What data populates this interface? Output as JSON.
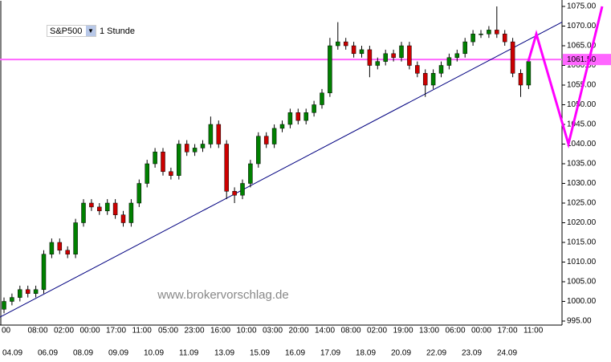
{
  "chart_data": {
    "type": "candlestick",
    "toolbar": {
      "symbol": "S&P500",
      "interval": "1 Stunde"
    },
    "watermark": "www.brokervorschlag.de",
    "ylim": [
      995,
      1075
    ],
    "yticks": [
      {
        "value": 995,
        "label": "995.00"
      },
      {
        "value": 1000,
        "label": "1000.00"
      },
      {
        "value": 1005,
        "label": "1005.00"
      },
      {
        "value": 1010,
        "label": "1010.00"
      },
      {
        "value": 1015,
        "label": "1015.00"
      },
      {
        "value": 1020,
        "label": "1020.00"
      },
      {
        "value": 1025,
        "label": "1025.00"
      },
      {
        "value": 1030,
        "label": "1030.00"
      },
      {
        "value": 1035,
        "label": "1035.00"
      },
      {
        "value": 1040,
        "label": "1040.00"
      },
      {
        "value": 1045,
        "label": "1045.00"
      },
      {
        "value": 1050,
        "label": "1050.00"
      },
      {
        "value": 1055,
        "label": "1055.00"
      },
      {
        "value": 1060,
        "label": "1060.00"
      },
      {
        "value": 1065,
        "label": "1065.00"
      },
      {
        "value": 1070,
        "label": "1070.00"
      },
      {
        "value": 1075,
        "label": "1075.00"
      }
    ],
    "time_labels": [
      "00",
      "08:00",
      "02:00",
      "00:00",
      "17:00",
      "11:00",
      "05:00",
      "23:00",
      "16:00",
      "10:00",
      "03:00",
      "20:00",
      "14:00",
      "08:00",
      "02:00",
      "19:00",
      "13:00",
      "06:00",
      "00:00",
      "17:00",
      "11:00"
    ],
    "date_labels": [
      "04.09",
      "06.09",
      "08.09",
      "09.09",
      "10.09",
      "11.09",
      "13.09",
      "15.09",
      "16.09",
      "17.09",
      "18.09",
      "20.09",
      "22.09",
      "23.09",
      "24.09"
    ],
    "current_price": {
      "value": 1061.5,
      "label": "1061.50",
      "color": "#ff66ff"
    },
    "trendline": {
      "values": [
        996,
        1071
      ],
      "color": "#000080"
    },
    "forecast": {
      "values": [
        1061,
        1068,
        1040,
        1075
      ],
      "color": "#ff00ff"
    },
    "up_color": "#008000",
    "down_color": "#cc0000",
    "open": [
      998,
      1000,
      1001,
      1003,
      1002,
      1003,
      1012,
      1015,
      1013,
      1012,
      1020,
      1025,
      1024,
      1023,
      1025,
      1022,
      1020,
      1025,
      1030,
      1035,
      1038,
      1033,
      1032,
      1040,
      1038,
      1039,
      1040,
      1045,
      1040,
      1028,
      1027,
      1030,
      1035,
      1042,
      1040,
      1044,
      1045,
      1048,
      1046,
      1048,
      1050,
      1053,
      1065,
      1066,
      1065,
      1063,
      1064,
      1060,
      1061,
      1063,
      1062,
      1065,
      1060,
      1058,
      1055,
      1058,
      1060,
      1062,
      1063,
      1066,
      1068,
      1068,
      1069,
      1068,
      1066,
      1058,
      1055
    ],
    "high": [
      1001,
      1002,
      1004,
      1004,
      1004,
      1013,
      1016,
      1016,
      1014,
      1021,
      1026,
      1026,
      1025,
      1026,
      1026,
      1023,
      1026,
      1031,
      1036,
      1039,
      1039,
      1034,
      1041,
      1041,
      1040,
      1041,
      1047,
      1046,
      1041,
      1029,
      1031,
      1036,
      1043,
      1043,
      1045,
      1046,
      1049,
      1049,
      1049,
      1051,
      1054,
      1067,
      1071,
      1067,
      1066,
      1065,
      1065,
      1062,
      1064,
      1064,
      1066,
      1066,
      1061,
      1059,
      1059,
      1061,
      1063,
      1064,
      1067,
      1069,
      1069,
      1070,
      1075,
      1069,
      1067,
      1059,
      1062
    ],
    "low": [
      997,
      999,
      1000,
      1001,
      1001,
      1002,
      1011,
      1012,
      1011,
      1011,
      1019,
      1023,
      1022,
      1022,
      1021,
      1019,
      1019,
      1024,
      1029,
      1034,
      1032,
      1031,
      1031,
      1037,
      1037,
      1038,
      1039,
      1039,
      1026,
      1025,
      1026,
      1029,
      1034,
      1039,
      1039,
      1043,
      1044,
      1045,
      1045,
      1047,
      1049,
      1052,
      1064,
      1064,
      1062,
      1062,
      1057,
      1059,
      1060,
      1061,
      1061,
      1059,
      1057,
      1052,
      1054,
      1057,
      1059,
      1061,
      1062,
      1065,
      1067,
      1067,
      1067,
      1065,
      1057,
      1052,
      1054
    ],
    "close": [
      1000,
      1001,
      1003,
      1002,
      1003,
      1012,
      1015,
      1013,
      1012,
      1020,
      1025,
      1024,
      1023,
      1025,
      1022,
      1020,
      1025,
      1030,
      1035,
      1038,
      1033,
      1032,
      1040,
      1038,
      1039,
      1040,
      1045,
      1040,
      1028,
      1027,
      1030,
      1035,
      1042,
      1040,
      1044,
      1045,
      1048,
      1046,
      1048,
      1050,
      1053,
      1065,
      1066,
      1065,
      1063,
      1064,
      1060,
      1061,
      1063,
      1062,
      1065,
      1060,
      1058,
      1055,
      1058,
      1060,
      1062,
      1063,
      1066,
      1068,
      1068,
      1069,
      1068,
      1066,
      1058,
      1055,
      1061
    ]
  }
}
